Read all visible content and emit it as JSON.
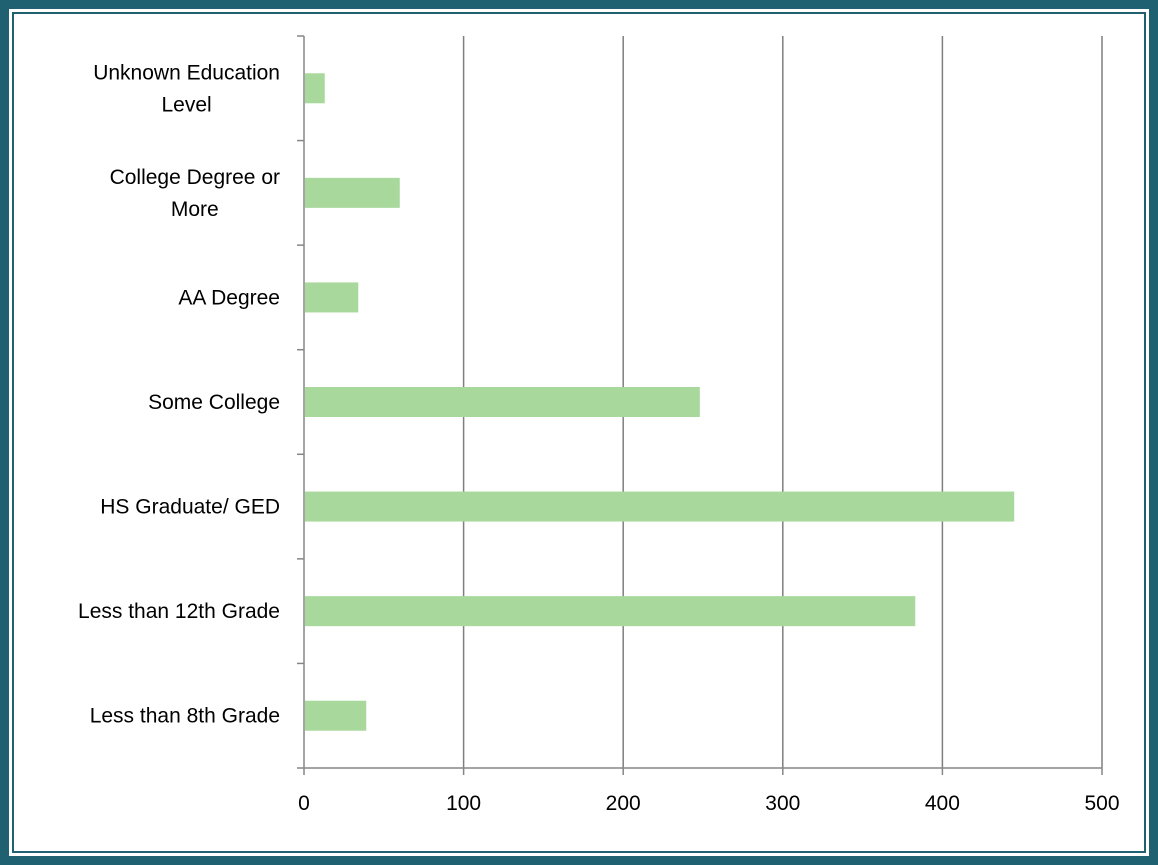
{
  "colors": {
    "frame": "#1f6170",
    "bar": "#a8d89b",
    "gridline": "#7f7f7f",
    "axis": "#868686"
  },
  "chart_data": {
    "type": "bar",
    "orientation": "horizontal",
    "categories": [
      [
        "Less than 8th Grade"
      ],
      [
        "Less than 12th Grade"
      ],
      [
        "HS Graduate/ GED"
      ],
      [
        "Some College"
      ],
      [
        "AA Degree"
      ],
      [
        "College Degree or",
        "More"
      ],
      [
        "Unknown Education",
        "Level"
      ]
    ],
    "values": [
      39,
      383,
      445,
      248,
      34,
      60,
      13
    ],
    "xlim": [
      0,
      500
    ],
    "xticks": [
      "0",
      "100",
      "200",
      "300",
      "400",
      "500"
    ],
    "grid": "vertical",
    "legend": "none"
  }
}
